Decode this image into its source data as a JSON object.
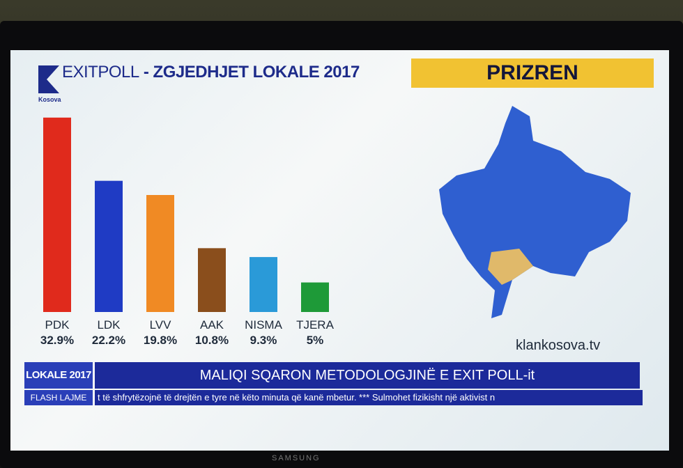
{
  "header": {
    "exitpoll": "EXITPOLL",
    "title": " - ZGJEDHJET LOKALE 2017",
    "logo_sub": "Kosova"
  },
  "place": "PRIZREN",
  "site": "klankosova.tv",
  "ticker": {
    "badge": "LOKALE 2017",
    "flash": "FLASH LAJME",
    "headline": "MALIQI SQARON METODOLOGJINË E EXIT POLL-it",
    "scroll": "t të shfrytëzojnë të drejtën e tyre në këto minuta që kanë mbetur. *** Sulmohet fizikisht një aktivist n"
  },
  "tv_brand": "SAMSUNG",
  "colors": {
    "highlight": "#f1c232",
    "map": "#2f5fd0",
    "ticker": "#1c2a9a"
  },
  "chart_data": {
    "type": "bar",
    "title": "EXITPOLL - ZGJEDHJET LOKALE 2017",
    "categories": [
      "PDK",
      "LDK",
      "LVV",
      "AAK",
      "NISMA",
      "TJERA"
    ],
    "values": [
      32.9,
      22.2,
      19.8,
      10.8,
      9.3,
      5
    ],
    "labels": [
      "32.9%",
      "22.2%",
      "19.8%",
      "10.8%",
      "9.3%",
      "5%"
    ],
    "colors": [
      "#e02a1c",
      "#1f3bc4",
      "#f08a24",
      "#8a4e1c",
      "#2a9ad8",
      "#1e9a38"
    ],
    "ylim": [
      0,
      33
    ],
    "grid": false,
    "legend": "none"
  }
}
